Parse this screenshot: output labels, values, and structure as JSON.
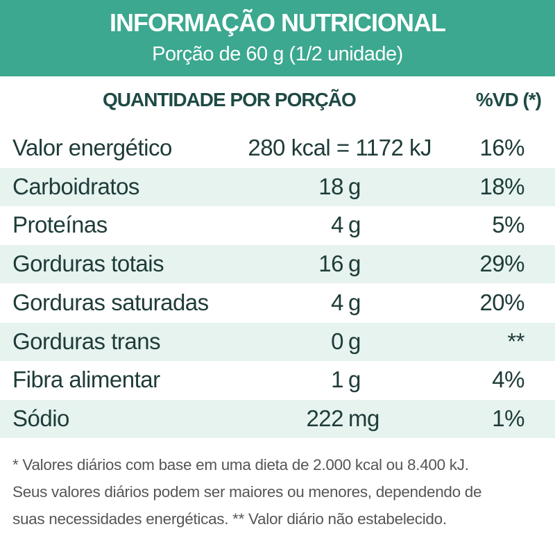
{
  "header": {
    "title": "INFORMAÇÃO NUTRICIONAL",
    "subtitle": "Porção de 60 g (1/2 unidade)"
  },
  "table": {
    "columns": [
      "QUANTIDADE POR PORÇÃO",
      "%VD (*)"
    ],
    "rows": [
      {
        "name": "Valor energético",
        "amount": "280 kcal = 1172 kJ",
        "vd": "16%"
      },
      {
        "name": "Carboidratos",
        "amount": "18",
        "unit": "g",
        "vd": "18%"
      },
      {
        "name": "Proteínas",
        "amount": "4",
        "unit": "g",
        "vd": "5%"
      },
      {
        "name": "Gorduras totais",
        "amount": "16",
        "unit": "g",
        "vd": "29%"
      },
      {
        "name": "Gorduras saturadas",
        "amount": "4",
        "unit": "g",
        "vd": "20%"
      },
      {
        "name": "Gorduras trans",
        "amount": "0",
        "unit": "g",
        "vd": "**"
      },
      {
        "name": "Fibra alimentar",
        "amount": "1",
        "unit": "g",
        "vd": "4%"
      },
      {
        "name": "Sódio",
        "amount": "222",
        "unit": "mg",
        "vd": "1%"
      }
    ]
  },
  "footnote": [
    "* Valores diários com base em uma dieta de 2.000 kcal ou 8.400 kJ.",
    "Seus valores diários podem ser maiores ou menores, dependendo de",
    "suas necessidades energéticas. ** Valor diário não estabelecido."
  ]
}
